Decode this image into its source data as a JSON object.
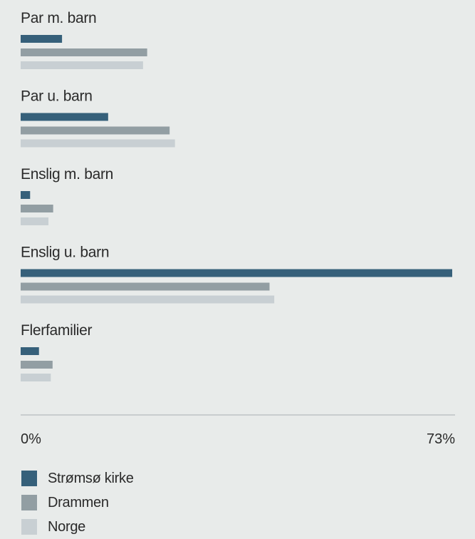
{
  "chart_data": {
    "type": "bar",
    "orientation": "horizontal",
    "categories": [
      "Par m. barn",
      "Par u. barn",
      "Enslig m. barn",
      "Enslig u. barn",
      "Flerfamilier"
    ],
    "series": [
      {
        "name": "Strømsø kirke",
        "color": "#36607a",
        "values": [
          7,
          14.8,
          1.6,
          73,
          3.1
        ]
      },
      {
        "name": "Drammen",
        "color": "#929ea3",
        "values": [
          21.4,
          25.2,
          5.5,
          42.1,
          5.4
        ]
      },
      {
        "name": "Norge",
        "color": "#c8cfd3",
        "values": [
          20.7,
          26.1,
          4.7,
          42.9,
          5.1
        ]
      }
    ],
    "xlim": [
      0,
      73
    ],
    "ticks": [
      "0%",
      "73%"
    ],
    "legend_position": "bottom-left",
    "grid": false
  }
}
